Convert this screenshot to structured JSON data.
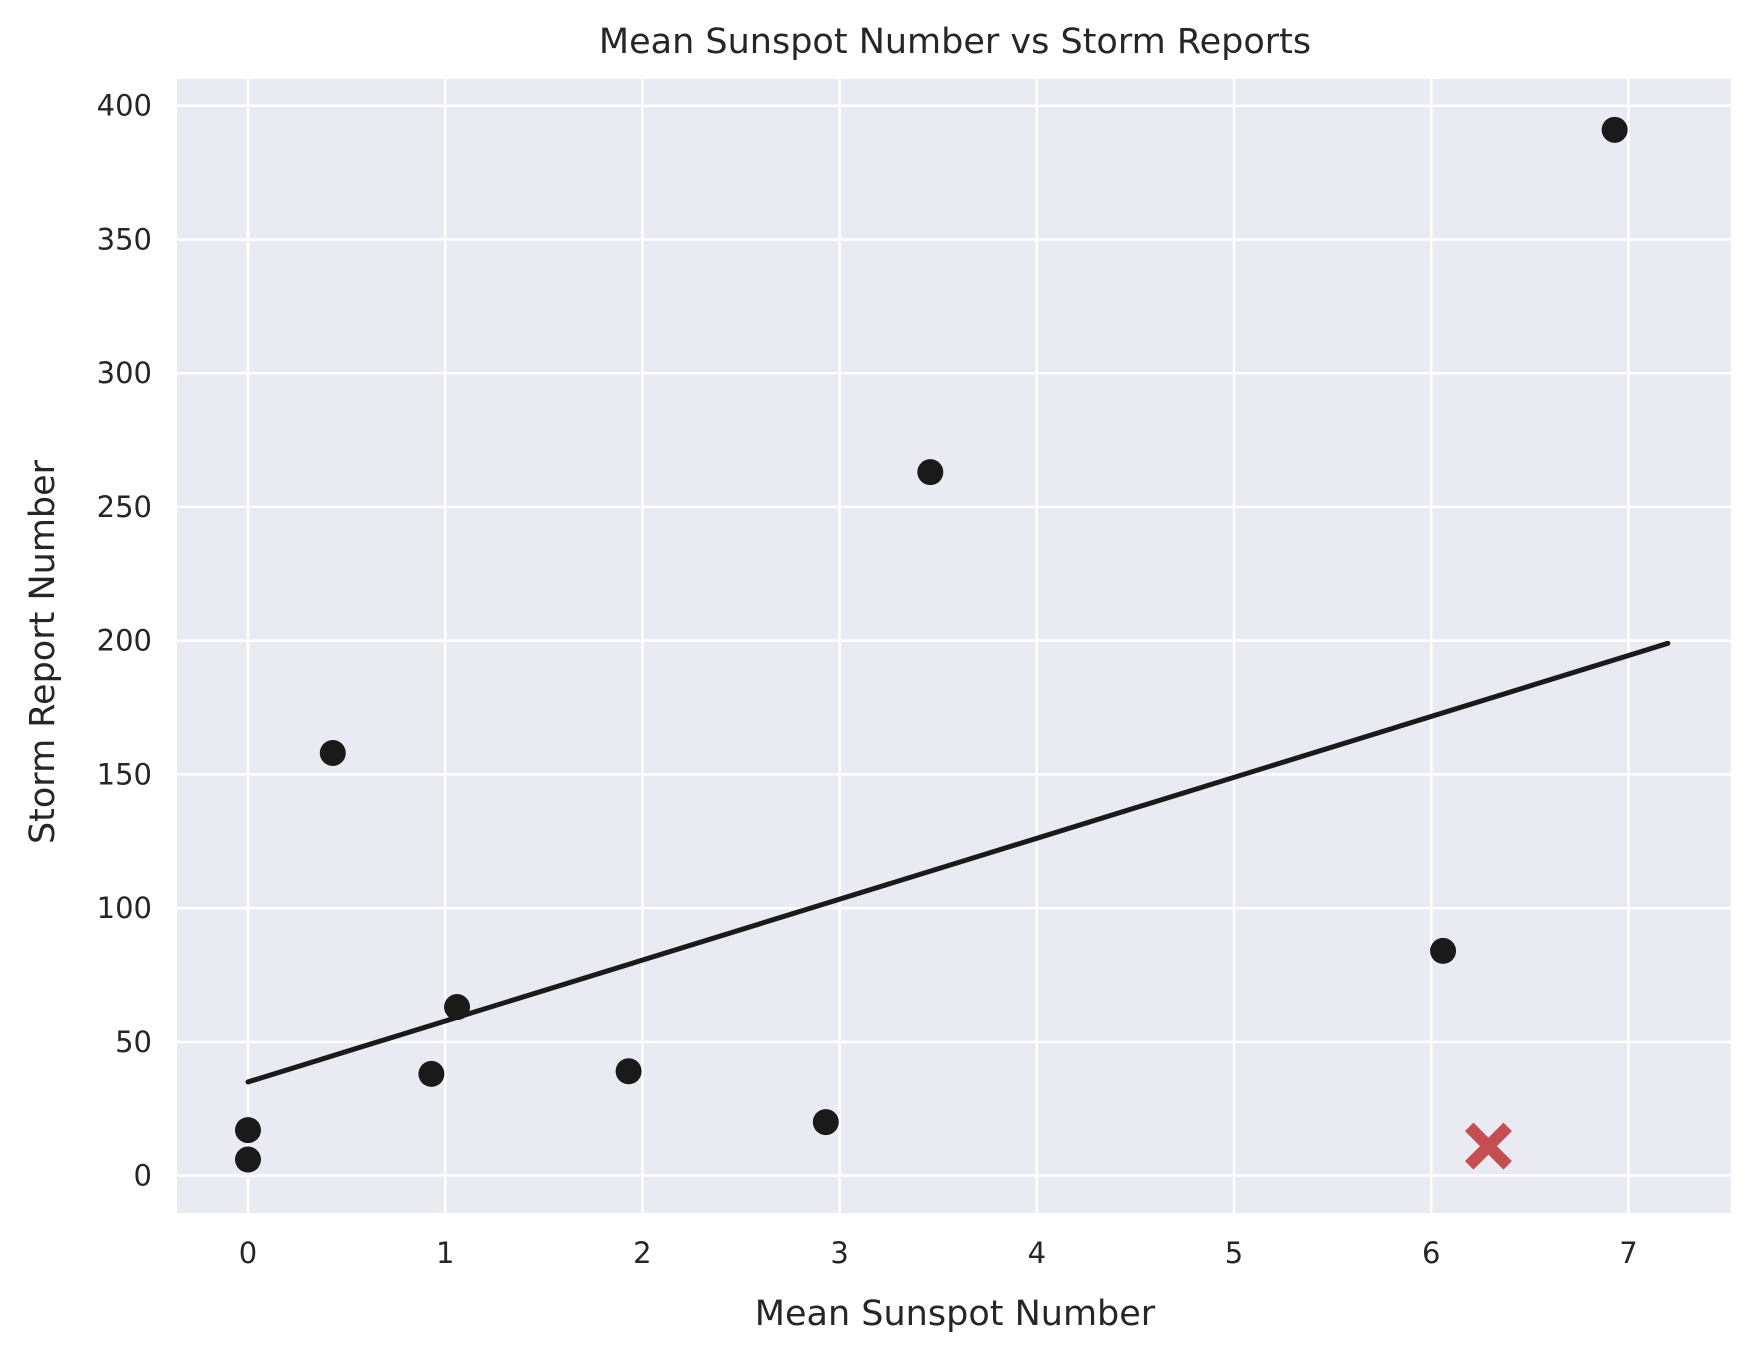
{
  "chart_data": {
    "type": "scatter",
    "title": "Mean Sunspot Number vs Storm Reports",
    "xlabel": "Mean Sunspot Number",
    "ylabel": "Storm Report Number",
    "xlim": [
      -0.36,
      7.52
    ],
    "ylim": [
      -14,
      410
    ],
    "xticks": [
      0,
      1,
      2,
      3,
      4,
      5,
      6,
      7
    ],
    "xtick_labels": [
      "0",
      "1",
      "2",
      "3",
      "4",
      "5",
      "6",
      "7"
    ],
    "yticks": [
      0,
      50,
      100,
      150,
      200,
      250,
      300,
      350,
      400
    ],
    "ytick_labels": [
      "0",
      "50",
      "100",
      "150",
      "200",
      "250",
      "300",
      "350",
      "400"
    ],
    "grid": true,
    "background": "#eaeaf2",
    "series": [
      {
        "marker": "circle",
        "color": "#1a1a1a",
        "points": [
          {
            "x": 0.0,
            "y": 17
          },
          {
            "x": 0.0,
            "y": 6
          },
          {
            "x": 0.43,
            "y": 158
          },
          {
            "x": 0.93,
            "y": 38
          },
          {
            "x": 1.06,
            "y": 63
          },
          {
            "x": 1.93,
            "y": 39
          },
          {
            "x": 2.93,
            "y": 20
          },
          {
            "x": 3.46,
            "y": 263
          },
          {
            "x": 6.06,
            "y": 84
          },
          {
            "x": 6.93,
            "y": 391
          }
        ]
      },
      {
        "marker": "x",
        "color": "#c44e52",
        "points": [
          {
            "x": 6.29,
            "y": 11
          }
        ]
      }
    ],
    "trend_line": {
      "color": "#1a1a1a",
      "points": [
        {
          "x": 0.0,
          "y": 35
        },
        {
          "x": 7.2,
          "y": 199
        }
      ]
    }
  }
}
